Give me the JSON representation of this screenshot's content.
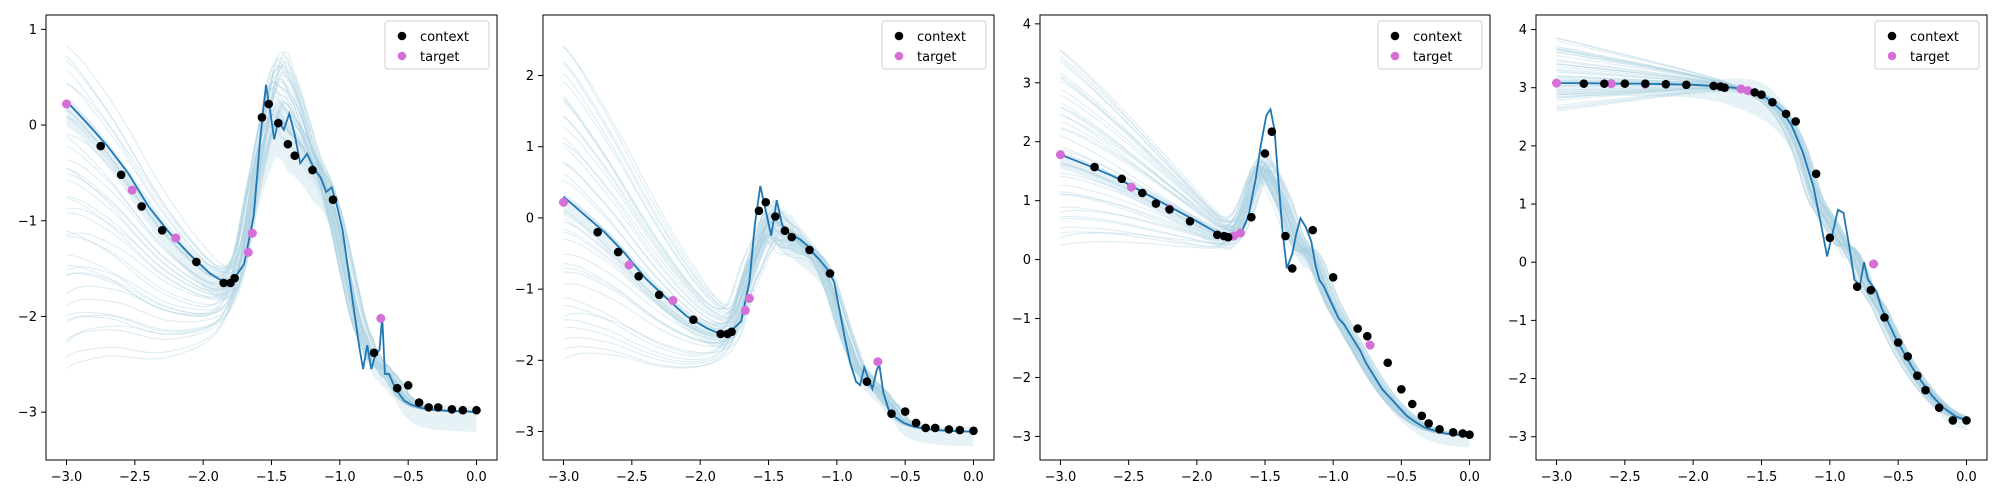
{
  "figure": {
    "subplot_count": 4,
    "background": "#ffffff"
  },
  "colors": {
    "context": "#000000",
    "target": "#d56fd8",
    "mean_line": "#1f77b4",
    "sample_lines": "#a9cfe0",
    "band_fill": "#c9e3ee"
  },
  "legend": {
    "context_label": "context",
    "target_label": "target",
    "placement": "top-right"
  },
  "chart_data": [
    {
      "type": "line",
      "title": "",
      "xlabel": "",
      "ylabel": "",
      "xlim": [
        -3.15,
        0.15
      ],
      "ylim": [
        -3.5,
        1.15
      ],
      "xticks": [
        -3.0,
        -2.5,
        -2.0,
        -1.5,
        -1.0,
        -0.5,
        0.0
      ],
      "xtick_labels": [
        "−3.0",
        "−2.5",
        "−2.0",
        "−1.5",
        "−1.0",
        "−0.5",
        "0.0"
      ],
      "yticks": [
        -3,
        -2,
        -1,
        0,
        1
      ],
      "ytick_labels": [
        "−3",
        "−2",
        "−1",
        "0",
        "1"
      ],
      "grid": false,
      "legend_placement": "top-right",
      "mean_curve": {
        "x": [
          -3.0,
          -2.85,
          -2.7,
          -2.55,
          -2.4,
          -2.25,
          -2.1,
          -1.95,
          -1.85,
          -1.78,
          -1.7,
          -1.63,
          -1.58,
          -1.54,
          -1.51,
          -1.48,
          -1.45,
          -1.41,
          -1.37,
          -1.33,
          -1.29,
          -1.24,
          -1.19,
          -1.14,
          -1.1,
          -1.06,
          -1.02,
          -0.98,
          -0.95,
          -0.92,
          -0.89,
          -0.86,
          -0.83,
          -0.8,
          -0.77,
          -0.74,
          -0.71,
          -0.69,
          -0.67,
          -0.64,
          -0.61,
          -0.57,
          -0.53,
          -0.48,
          -0.42,
          -0.35,
          -0.27,
          -0.18,
          -0.09,
          0.0
        ],
        "y": [
          0.25,
          0.02,
          -0.22,
          -0.5,
          -0.85,
          -1.12,
          -1.35,
          -1.55,
          -1.64,
          -1.62,
          -1.45,
          -0.95,
          -0.1,
          0.42,
          0.15,
          -0.15,
          0.05,
          -0.05,
          0.12,
          -0.1,
          -0.4,
          -0.3,
          -0.45,
          -0.55,
          -0.7,
          -0.65,
          -0.85,
          -1.1,
          -1.4,
          -1.7,
          -2.0,
          -2.3,
          -2.55,
          -2.3,
          -2.55,
          -2.4,
          -2.35,
          -2.0,
          -2.6,
          -2.6,
          -2.7,
          -2.8,
          -2.88,
          -2.92,
          -2.95,
          -2.97,
          -2.98,
          -2.99,
          -2.99,
          -3.0
        ]
      },
      "samples": {
        "count": 40,
        "left_low": -2.55,
        "left_high": 0.8,
        "bump_center": -1.4,
        "bump_low": -0.1,
        "bump_high": 0.75,
        "end_value": -3.0
      },
      "context": {
        "x": [
          -2.75,
          -2.6,
          -2.45,
          -2.3,
          -2.05,
          -1.85,
          -1.8,
          -1.77,
          -1.57,
          -1.52,
          -1.45,
          -1.38,
          -1.33,
          -1.2,
          -1.05,
          -0.75,
          -0.58,
          -0.5,
          -0.42,
          -0.35,
          -0.28,
          -0.18,
          -0.1,
          0.0
        ],
        "y": [
          -0.22,
          -0.52,
          -0.85,
          -1.1,
          -1.43,
          -1.65,
          -1.65,
          -1.6,
          0.08,
          0.22,
          0.02,
          -0.2,
          -0.32,
          -0.47,
          -0.78,
          -2.38,
          -2.75,
          -2.72,
          -2.9,
          -2.95,
          -2.95,
          -2.97,
          -2.98,
          -2.98
        ]
      },
      "target": {
        "x": [
          -3.0,
          -2.52,
          -2.2,
          -1.67,
          -1.64,
          -0.7
        ],
        "y": [
          0.22,
          -0.68,
          -1.18,
          -1.33,
          -1.13,
          -2.02
        ]
      }
    },
    {
      "type": "line",
      "title": "",
      "xlabel": "",
      "ylabel": "",
      "xlim": [
        -3.15,
        0.15
      ],
      "ylim": [
        -3.4,
        2.85
      ],
      "xticks": [
        -3.0,
        -2.5,
        -2.0,
        -1.5,
        -1.0,
        -0.5,
        0.0
      ],
      "xtick_labels": [
        "−3.0",
        "−2.5",
        "−2.0",
        "−1.5",
        "−1.0",
        "−0.5",
        "0.0"
      ],
      "yticks": [
        -3,
        -2,
        -1,
        0,
        1,
        2
      ],
      "ytick_labels": [
        "−3",
        "−2",
        "−1",
        "0",
        "1",
        "2"
      ],
      "grid": false,
      "legend_placement": "top-right",
      "mean_curve": {
        "x": [
          -3.0,
          -2.85,
          -2.7,
          -2.55,
          -2.4,
          -2.25,
          -2.1,
          -1.95,
          -1.85,
          -1.78,
          -1.7,
          -1.64,
          -1.6,
          -1.56,
          -1.52,
          -1.48,
          -1.44,
          -1.4,
          -1.36,
          -1.32,
          -1.27,
          -1.22,
          -1.17,
          -1.12,
          -1.07,
          -1.02,
          -0.98,
          -0.94,
          -0.9,
          -0.86,
          -0.83,
          -0.8,
          -0.77,
          -0.74,
          -0.71,
          -0.69,
          -0.66,
          -0.62,
          -0.57,
          -0.51,
          -0.44,
          -0.36,
          -0.27,
          -0.18,
          -0.09,
          0.0
        ],
        "y": [
          0.3,
          0.05,
          -0.2,
          -0.5,
          -0.85,
          -1.12,
          -1.38,
          -1.55,
          -1.63,
          -1.6,
          -1.45,
          -0.9,
          -0.1,
          0.45,
          0.1,
          -0.25,
          0.25,
          -0.1,
          -0.2,
          -0.25,
          -0.3,
          -0.38,
          -0.5,
          -0.6,
          -0.72,
          -0.9,
          -1.3,
          -1.7,
          -2.05,
          -2.3,
          -2.35,
          -2.1,
          -2.25,
          -2.4,
          -2.15,
          -2.05,
          -2.45,
          -2.7,
          -2.8,
          -2.88,
          -2.93,
          -2.96,
          -2.98,
          -2.99,
          -3.0,
          -3.0
        ]
      },
      "samples": {
        "count": 40,
        "left_low": -2.05,
        "left_high": 2.45,
        "bump_center": -1.45,
        "bump_low": -0.4,
        "bump_high": 0.15,
        "end_value": -3.0
      },
      "context": {
        "x": [
          -2.75,
          -2.6,
          -2.45,
          -2.3,
          -2.05,
          -1.85,
          -1.8,
          -1.77,
          -1.57,
          -1.52,
          -1.45,
          -1.38,
          -1.33,
          -1.2,
          -1.05,
          -0.78,
          -0.6,
          -0.5,
          -0.42,
          -0.35,
          -0.28,
          -0.18,
          -0.1,
          0.0
        ],
        "y": [
          -0.2,
          -0.48,
          -0.82,
          -1.08,
          -1.43,
          -1.63,
          -1.63,
          -1.6,
          0.1,
          0.22,
          0.02,
          -0.18,
          -0.27,
          -0.45,
          -0.78,
          -2.3,
          -2.75,
          -2.72,
          -2.88,
          -2.95,
          -2.95,
          -2.97,
          -2.98,
          -2.99
        ]
      },
      "target": {
        "x": [
          -3.0,
          -2.52,
          -2.2,
          -1.67,
          -1.64,
          -0.7
        ],
        "y": [
          0.22,
          -0.66,
          -1.16,
          -1.3,
          -1.13,
          -2.02
        ]
      }
    },
    {
      "type": "line",
      "title": "",
      "xlabel": "",
      "ylabel": "",
      "xlim": [
        -3.15,
        0.15
      ],
      "ylim": [
        -3.4,
        4.15
      ],
      "xticks": [
        -3.0,
        -2.5,
        -2.0,
        -1.5,
        -1.0,
        -0.5,
        0.0
      ],
      "xtick_labels": [
        "−3.0",
        "−2.5",
        "−2.0",
        "−1.5",
        "−1.0",
        "−0.5",
        "0.0"
      ],
      "yticks": [
        -3,
        -2,
        -1,
        0,
        1,
        2,
        3,
        4
      ],
      "ytick_labels": [
        "−3",
        "−2",
        "−1",
        "0",
        "1",
        "2",
        "3",
        "4"
      ],
      "grid": false,
      "legend_placement": "top-right",
      "mean_curve": {
        "x": [
          -3.0,
          -2.8,
          -2.6,
          -2.4,
          -2.2,
          -2.0,
          -1.85,
          -1.75,
          -1.68,
          -1.62,
          -1.57,
          -1.53,
          -1.49,
          -1.46,
          -1.43,
          -1.4,
          -1.37,
          -1.34,
          -1.3,
          -1.27,
          -1.24,
          -1.2,
          -1.16,
          -1.13,
          -1.1,
          -1.07,
          -1.04,
          -1.0,
          -0.96,
          -0.92,
          -0.88,
          -0.84,
          -0.8,
          -0.76,
          -0.72,
          -0.68,
          -0.64,
          -0.58,
          -0.52,
          -0.46,
          -0.4,
          -0.33,
          -0.26,
          -0.18,
          -0.1,
          0.0
        ],
        "y": [
          1.78,
          1.6,
          1.4,
          1.15,
          0.9,
          0.65,
          0.45,
          0.38,
          0.42,
          0.75,
          1.35,
          1.95,
          2.45,
          2.55,
          2.2,
          1.3,
          0.45,
          -0.15,
          0.1,
          0.45,
          0.7,
          0.55,
          0.3,
          -0.1,
          -0.35,
          -0.45,
          -0.6,
          -0.8,
          -1.0,
          -1.1,
          -1.25,
          -1.4,
          -1.55,
          -1.75,
          -1.9,
          -2.05,
          -2.2,
          -2.35,
          -2.5,
          -2.65,
          -2.75,
          -2.85,
          -2.9,
          -2.95,
          -2.97,
          -2.98
        ]
      },
      "samples": {
        "count": 40,
        "left_low": 0.2,
        "left_high": 3.6,
        "bump_center": -1.45,
        "bump_low": -0.3,
        "bump_high": 0.1,
        "end_value": -3.0
      },
      "context": {
        "x": [
          -2.75,
          -2.55,
          -2.4,
          -2.3,
          -2.2,
          -2.05,
          -1.85,
          -1.8,
          -1.77,
          -1.6,
          -1.5,
          -1.45,
          -1.35,
          -1.3,
          -1.15,
          -1.0,
          -0.82,
          -0.75,
          -0.6,
          -0.5,
          -0.42,
          -0.35,
          -0.3,
          -0.22,
          -0.12,
          -0.05,
          0.0
        ],
        "y": [
          1.57,
          1.37,
          1.13,
          0.95,
          0.85,
          0.65,
          0.42,
          0.4,
          0.38,
          0.72,
          1.8,
          2.17,
          0.4,
          -0.15,
          0.5,
          -0.3,
          -1.17,
          -1.3,
          -1.75,
          -2.2,
          -2.45,
          -2.65,
          -2.78,
          -2.88,
          -2.93,
          -2.95,
          -2.97
        ]
      },
      "target": {
        "x": [
          -3.0,
          -2.48,
          -2.2,
          -1.73,
          -1.68,
          -0.73
        ],
        "y": [
          1.78,
          1.23,
          0.86,
          0.4,
          0.45,
          -1.45
        ]
      }
    },
    {
      "type": "line",
      "title": "",
      "xlabel": "",
      "ylabel": "",
      "xlim": [
        -3.15,
        0.15
      ],
      "ylim": [
        -3.4,
        4.25
      ],
      "xticks": [
        -3.0,
        -2.5,
        -2.0,
        -1.5,
        -1.0,
        -0.5,
        0.0
      ],
      "xtick_labels": [
        "−3.0",
        "−2.5",
        "−2.0",
        "−1.5",
        "−1.0",
        "−0.5",
        "0.0"
      ],
      "yticks": [
        -3,
        -2,
        -1,
        0,
        1,
        2,
        3,
        4
      ],
      "ytick_labels": [
        "−3",
        "−2",
        "−1",
        "0",
        "1",
        "2",
        "3",
        "4"
      ],
      "grid": false,
      "legend_placement": "top-right",
      "mean_curve": {
        "x": [
          -3.0,
          -2.8,
          -2.6,
          -2.4,
          -2.2,
          -2.0,
          -1.85,
          -1.7,
          -1.6,
          -1.5,
          -1.42,
          -1.35,
          -1.28,
          -1.2,
          -1.12,
          -1.06,
          -1.02,
          -0.98,
          -0.94,
          -0.9,
          -0.86,
          -0.82,
          -0.78,
          -0.75,
          -0.72,
          -0.69,
          -0.66,
          -0.62,
          -0.57,
          -0.52,
          -0.46,
          -0.4,
          -0.33,
          -0.25,
          -0.17,
          -0.08,
          0.0
        ],
        "y": [
          3.08,
          3.08,
          3.07,
          3.07,
          3.06,
          3.05,
          3.03,
          3.0,
          2.95,
          2.88,
          2.75,
          2.6,
          2.35,
          1.9,
          1.3,
          0.6,
          0.1,
          0.5,
          0.9,
          0.85,
          0.3,
          -0.3,
          -0.4,
          0.0,
          -0.3,
          -0.4,
          -0.5,
          -0.8,
          -1.05,
          -1.3,
          -1.55,
          -1.8,
          -2.05,
          -2.3,
          -2.5,
          -2.65,
          -2.72
        ]
      },
      "samples": {
        "count": 40,
        "left_low": 2.55,
        "left_high": 3.85,
        "bump_center": -1.45,
        "bump_low": 0.0,
        "bump_high": 0.0,
        "end_value": -2.75
      },
      "context": {
        "x": [
          -2.8,
          -2.65,
          -2.5,
          -2.35,
          -2.2,
          -2.05,
          -1.85,
          -1.8,
          -1.77,
          -1.55,
          -1.5,
          -1.42,
          -1.32,
          -1.25,
          -1.1,
          -1.0,
          -0.8,
          -0.7,
          -0.6,
          -0.5,
          -0.43,
          -0.36,
          -0.3,
          -0.2,
          -0.1,
          0.0
        ],
        "y": [
          3.07,
          3.07,
          3.07,
          3.07,
          3.06,
          3.05,
          3.03,
          3.02,
          3.0,
          2.92,
          2.88,
          2.75,
          2.55,
          2.42,
          1.52,
          0.42,
          -0.42,
          -0.48,
          -0.95,
          -1.38,
          -1.62,
          -1.95,
          -2.2,
          -2.5,
          -2.72,
          -2.72
        ]
      },
      "target": {
        "x": [
          -3.0,
          -2.6,
          -2.35,
          -1.65,
          -1.6,
          -0.68
        ],
        "y": [
          3.08,
          3.07,
          3.06,
          2.98,
          2.95,
          -0.03
        ]
      }
    }
  ]
}
